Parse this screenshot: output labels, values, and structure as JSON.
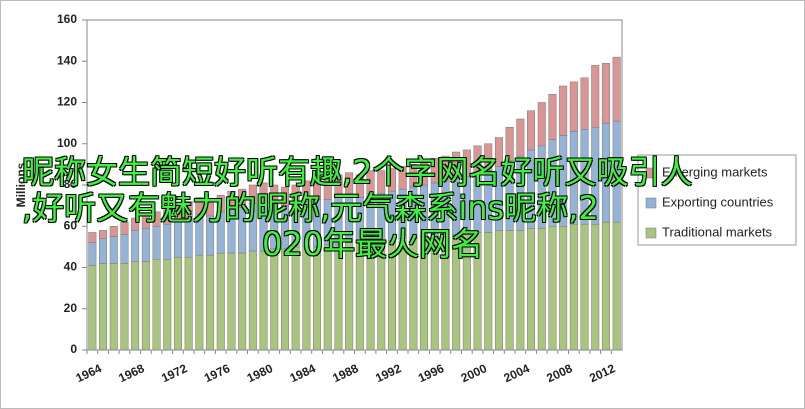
{
  "chart_data": {
    "type": "stacked_bar",
    "y_label": "Millions",
    "categories": [
      "1964",
      null,
      null,
      null,
      "1968",
      null,
      null,
      null,
      "1972",
      null,
      null,
      null,
      "1976",
      null,
      null,
      null,
      "1980",
      null,
      null,
      null,
      "1984",
      null,
      null,
      null,
      "1988",
      null,
      null,
      null,
      "1992",
      null,
      null,
      null,
      "1996",
      null,
      null,
      null,
      "2000",
      null,
      null,
      null,
      "2004",
      null,
      null,
      null,
      "2008",
      null,
      null,
      null,
      "2012",
      null
    ],
    "series": [
      {
        "name": "Traditional markets",
        "color": "#a9c47f",
        "values": [
          41,
          42,
          42,
          42,
          43,
          43,
          44,
          44,
          45,
          45,
          46,
          46,
          47,
          47,
          47,
          48,
          48,
          49,
          49,
          50,
          50,
          50,
          51,
          51,
          52,
          52,
          52,
          53,
          53,
          54,
          54,
          55,
          55,
          55,
          56,
          56,
          57,
          57,
          58,
          58,
          58,
          59,
          59,
          60,
          60,
          61,
          61,
          61,
          62,
          62
        ]
      },
      {
        "name": "Exporting countries",
        "color": "#95b3d7",
        "values": [
          11,
          12,
          13,
          14,
          15,
          16,
          16,
          17,
          18,
          19,
          20,
          19,
          20,
          21,
          22,
          23,
          23,
          22,
          21,
          21,
          22,
          23,
          22,
          23,
          23,
          22,
          24,
          23,
          24,
          24,
          25,
          25,
          26,
          27,
          28,
          28,
          29,
          30,
          31,
          34,
          36,
          38,
          40,
          42,
          44,
          45,
          46,
          47,
          48,
          49
        ]
      },
      {
        "name": "Emerging markets",
        "color": "#d99694",
        "values": [
          5,
          4,
          5,
          6,
          6,
          7,
          7,
          7,
          7,
          8,
          8,
          8,
          8,
          9,
          9,
          9,
          10,
          9,
          9,
          9,
          10,
          11,
          10,
          11,
          11,
          11,
          11,
          11,
          11,
          11,
          11,
          12,
          12,
          12,
          12,
          13,
          13,
          13,
          14,
          16,
          18,
          19,
          21,
          22,
          24,
          24,
          25,
          30,
          29,
          31
        ]
      }
    ],
    "ylim": [
      0,
      160
    ],
    "yticks": [
      0,
      20,
      40,
      60,
      80,
      100,
      120,
      140,
      160
    ],
    "legend": "right"
  },
  "overlay_lines": [
    "昵称女生简短好听有趣,2个字网名好听又吸引人",
    ",好听又有魅力的昵称,元气森系ins昵称,2",
    "020年最火网名"
  ]
}
